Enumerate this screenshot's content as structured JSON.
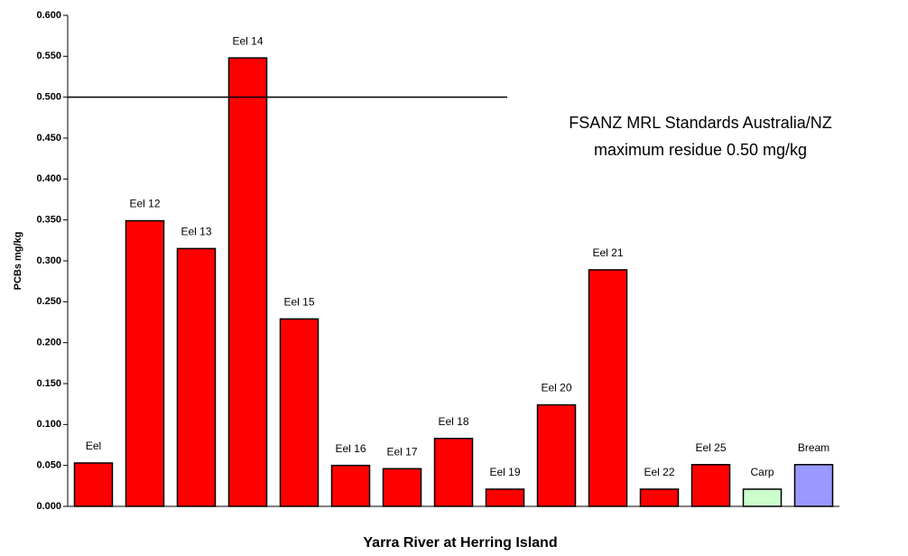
{
  "chart_data": {
    "type": "bar",
    "x_label": "Yarra River at Herring Island",
    "y_label": "PCBs mg/kg",
    "categories": [
      "Eel",
      "Eel 12",
      "Eel 13",
      "Eel 14",
      "Eel 15",
      "Eel 16",
      "Eel 17",
      "Eel 18",
      "Eel 19",
      "Eel 20",
      "Eel 21",
      "Eel 22",
      "Eel 25",
      "Carp",
      "Bream"
    ],
    "values": [
      0.053,
      0.349,
      0.315,
      0.548,
      0.229,
      0.05,
      0.046,
      0.083,
      0.021,
      0.124,
      0.289,
      0.021,
      0.051,
      0.021,
      0.051
    ],
    "colors": [
      "#ff0000",
      "#ff0000",
      "#ff0000",
      "#ff0000",
      "#ff0000",
      "#ff0000",
      "#ff0000",
      "#ff0000",
      "#ff0000",
      "#ff0000",
      "#ff0000",
      "#ff0000",
      "#ff0000",
      "#ccffcc",
      "#9999ff"
    ],
    "ylim": [
      0,
      0.6
    ],
    "yticks": [
      {
        "value": 0,
        "label": "0.000"
      },
      {
        "value": 0.05,
        "label": "0.050"
      },
      {
        "value": 0.1,
        "label": "0.100"
      },
      {
        "value": 0.15,
        "label": "0.150"
      },
      {
        "value": 0.2,
        "label": "0.200"
      },
      {
        "value": 0.25,
        "label": "0.250"
      },
      {
        "value": 0.3,
        "label": "0.300"
      },
      {
        "value": 0.35,
        "label": "0.350"
      },
      {
        "value": 0.4,
        "label": "0.400"
      },
      {
        "value": 0.45,
        "label": "0.450"
      },
      {
        "value": 0.5,
        "label": "0.500"
      },
      {
        "value": 0.55,
        "label": "0.550"
      },
      {
        "value": 0.6,
        "label": "0.600"
      }
    ],
    "grid": false,
    "reference_line": {
      "value": 0.5,
      "label": [
        "FSANZ MRL Standards Australia/NZ",
        "maximum residue 0.50 mg/kg"
      ]
    }
  }
}
